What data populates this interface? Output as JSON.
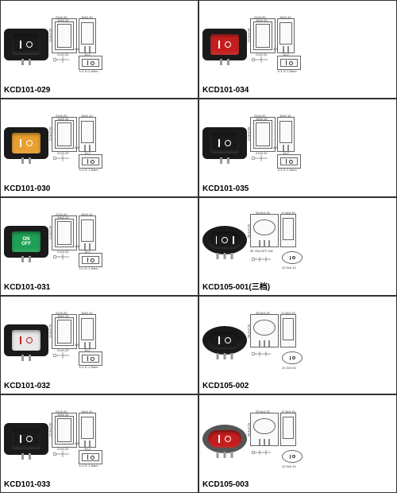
{
  "grid_cols": 2,
  "grid_rows": 5,
  "dimensions_rect": {
    "outer_w": "21±0.20",
    "outer_h": "15±0.10",
    "inner_w": "19±0.10",
    "cutout": "19.2",
    "height": "22.8±0.30",
    "depth": "12.8±0.20",
    "pin_w": "4.8",
    "pin_spacing": "2.8",
    "thickness": "t=1.0~1.5mm"
  },
  "dimensions_oval": {
    "outer_w": "25.6±0.20",
    "outer_h": "17.6±0.10",
    "height": "28.3±0.20",
    "cutout_w": "22.3±0.10",
    "cutout_h": "9.7±0.10",
    "depth": "18.8±0.30"
  },
  "products": [
    {
      "id": "KCD101-029",
      "shape": "rect",
      "bezel_color": "#1a1a1a",
      "rocker_color": "#1a1a1a",
      "symbol_color": "#ffffff",
      "symbols": "io",
      "pins": 2
    },
    {
      "id": "KCD101-034",
      "shape": "rect",
      "bezel_color": "#1a1a1a",
      "rocker_color": "#c41e1e",
      "symbol_color": "#ffffff",
      "symbols": "io",
      "pins": 2
    },
    {
      "id": "KCD101-030",
      "shape": "rect",
      "bezel_color": "#1a1a1a",
      "rocker_color": "#e8a030",
      "symbol_color": "#ffffff",
      "symbols": "io",
      "pins": 2
    },
    {
      "id": "KCD101-035",
      "shape": "rect",
      "bezel_color": "#1a1a1a",
      "rocker_color": "#1a1a1a",
      "symbol_color": "#ffffff",
      "symbols": "io",
      "pins": 2
    },
    {
      "id": "KCD101-031",
      "shape": "rect",
      "bezel_color": "#1a1a1a",
      "rocker_color": "#1fa055",
      "symbol_color": "#ffffff",
      "symbols": "onoff",
      "pins": 2,
      "on_text": "ON",
      "off_text": "OFF"
    },
    {
      "id": "KCD105-001(三档)",
      "shape": "oval",
      "bezel_color": "#1a1a1a",
      "rocker_color": "#1a1a1a",
      "symbol_color": "#ffffff",
      "symbols": "ioi",
      "pins": 3,
      "note": "3P ON-OFF-ON"
    },
    {
      "id": "KCD101-032",
      "shape": "rect",
      "bezel_color": "#1a1a1a",
      "rocker_color": "#e8e8e8",
      "symbol_color": "#c41e1e",
      "symbols": "io",
      "pins": 2
    },
    {
      "id": "KCD105-002",
      "shape": "oval",
      "bezel_color": "#1a1a1a",
      "rocker_color": "#1a1a1a",
      "symbol_color": "#ffffff",
      "symbols": "io",
      "pins": 3
    },
    {
      "id": "KCD101-033",
      "shape": "rect",
      "bezel_color": "#1a1a1a",
      "rocker_color": "#1a1a1a",
      "symbol_color": "#ffffff",
      "symbols": "io",
      "pins": 2
    },
    {
      "id": "KCD105-003",
      "shape": "oval",
      "bezel_color": "#555555",
      "rocker_color": "#c41e1e",
      "symbol_color": "#ffffff",
      "symbols": "io",
      "pins": 3
    }
  ]
}
